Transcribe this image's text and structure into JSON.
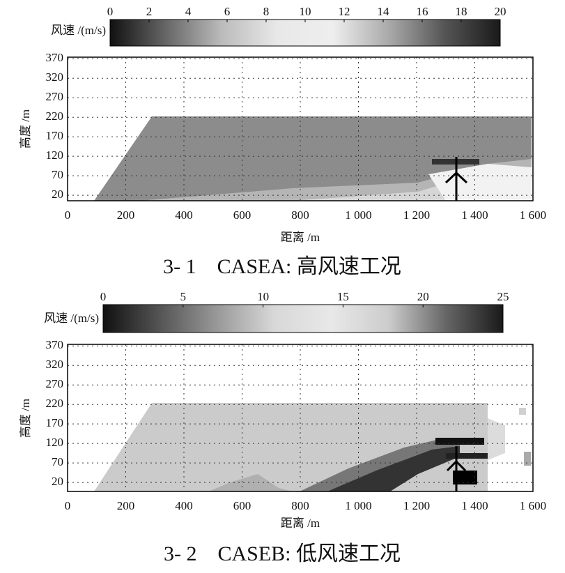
{
  "chart_data": [
    {
      "type": "heatmap",
      "title": "3- 1　CASEA: 高风速工况",
      "colorbar_label": "风速 /(m/s)",
      "clim": [
        0,
        20
      ],
      "cticks": [
        0,
        2,
        4,
        6,
        8,
        10,
        12,
        14,
        16,
        18,
        20
      ],
      "colormap": [
        "#111111",
        "#666666",
        "#bbbbbb",
        "#e8e8e8",
        "#eeeeee",
        "#aaaaaa",
        "#555555",
        "#1a1a1a"
      ],
      "x_label": "距离 /m",
      "y_label": "高度 /m",
      "xlim": [
        0,
        1600
      ],
      "xticks": [
        0,
        200,
        400,
        600,
        800,
        {
          "value": 1000,
          "label": "1 000"
        },
        {
          "value": 1200,
          "label": "1 200"
        },
        {
          "value": 1400,
          "label": "1 400"
        },
        {
          "value": 1600,
          "label": "1 600"
        }
      ],
      "ylim": [
        6,
        374
      ],
      "yticks": [
        20,
        70,
        120,
        170,
        220,
        270,
        320,
        370
      ],
      "grid": true
    },
    {
      "type": "heatmap",
      "title": "3- 2　CASEB: 低风速工况",
      "colorbar_label": "风速 /(m/s)",
      "clim": [
        0,
        25
      ],
      "cticks": [
        0,
        5,
        10,
        15,
        20,
        25
      ],
      "colormap": [
        "#111111",
        "#555555",
        "#999999",
        "#d8d8d8",
        "#e8e8e8",
        "#cccccc",
        "#666666",
        "#1a1a1a"
      ],
      "x_label": "距离 /m",
      "y_label": "高度 /m",
      "xlim": [
        0,
        1600
      ],
      "xticks": [
        0,
        200,
        400,
        600,
        800,
        {
          "value": 1000,
          "label": "1 000"
        },
        {
          "value": 1200,
          "label": "1 200"
        },
        {
          "value": 1400,
          "label": "1 400"
        },
        {
          "value": 1600,
          "label": "1 600"
        }
      ],
      "ylim": [
        -3,
        374
      ],
      "yticks": [
        20,
        70,
        120,
        170,
        220,
        270,
        320,
        370
      ],
      "grid": true
    }
  ]
}
